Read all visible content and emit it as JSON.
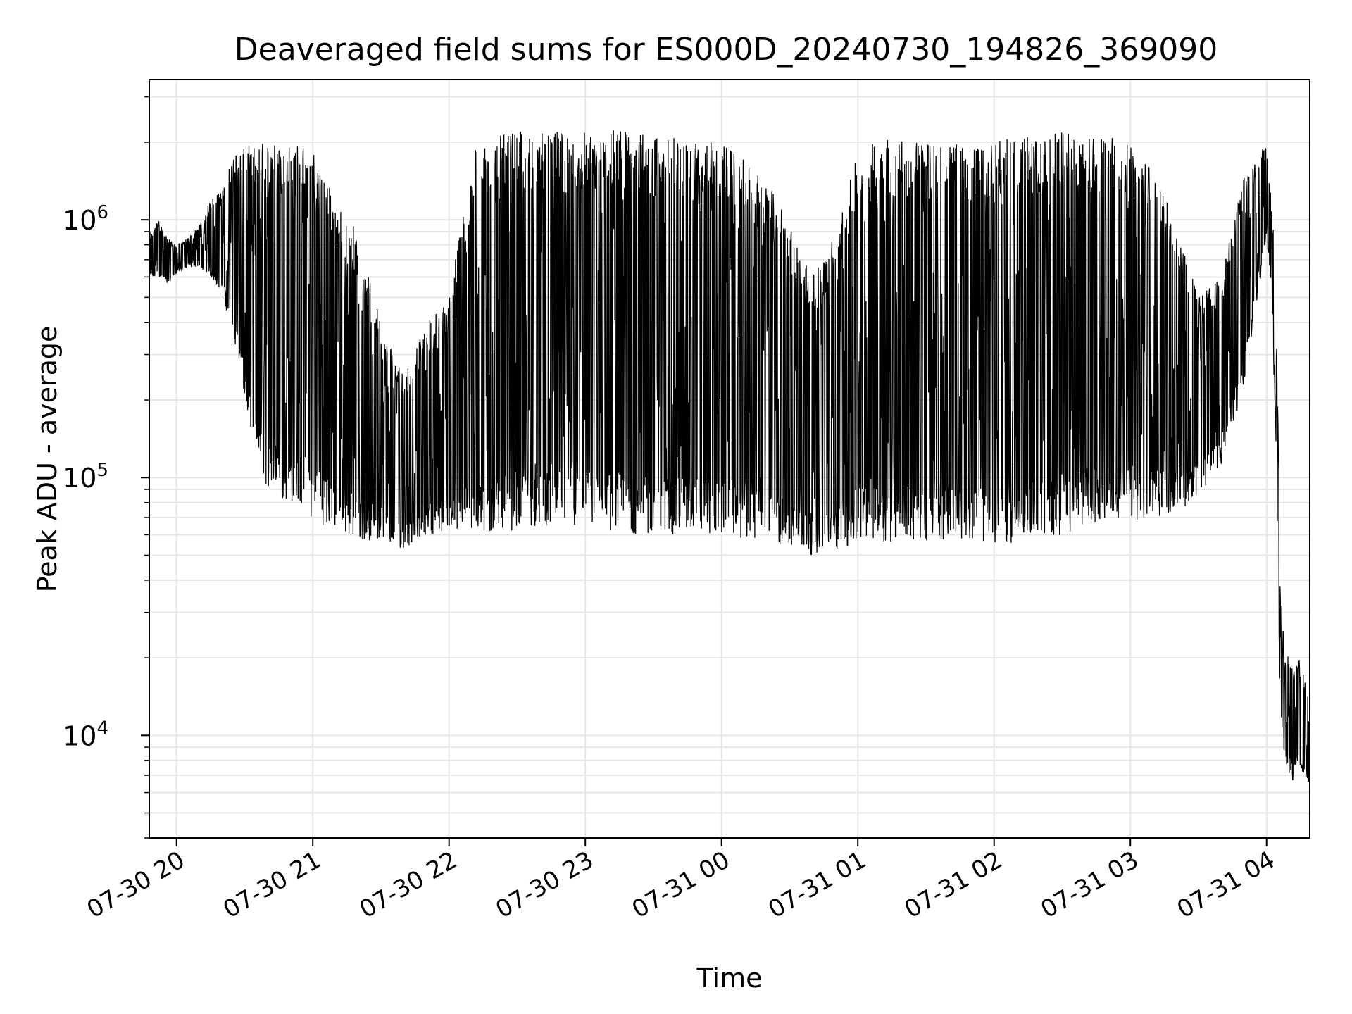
{
  "chart_data": {
    "type": "line",
    "title": "Deaveraged field sums for ES000D_20240730_194826_369090",
    "xlabel": "Time",
    "ylabel": "Peak ADU - average",
    "x_axis": {
      "kind": "datetime",
      "range": [
        "2024-07-30T19:48:00",
        "2024-07-31T04:19:00"
      ],
      "ticks": [
        {
          "value": "2024-07-30T20:00:00",
          "label": "07-30 20"
        },
        {
          "value": "2024-07-30T21:00:00",
          "label": "07-30 21"
        },
        {
          "value": "2024-07-30T22:00:00",
          "label": "07-30 22"
        },
        {
          "value": "2024-07-30T23:00:00",
          "label": "07-30 23"
        },
        {
          "value": "2024-07-31T00:00:00",
          "label": "07-31 00"
        },
        {
          "value": "2024-07-31T01:00:00",
          "label": "07-31 01"
        },
        {
          "value": "2024-07-31T02:00:00",
          "label": "07-31 02"
        },
        {
          "value": "2024-07-31T03:00:00",
          "label": "07-31 03"
        },
        {
          "value": "2024-07-31T04:00:00",
          "label": "07-31 04"
        }
      ]
    },
    "y_axis": {
      "scale": "log",
      "range": [
        4000,
        3500000
      ],
      "ticks": [
        {
          "value": 10000,
          "base": "10",
          "exp": "4"
        },
        {
          "value": 100000,
          "base": "10",
          "exp": "5"
        },
        {
          "value": 1000000,
          "base": "10",
          "exp": "6"
        }
      ]
    },
    "grid": true,
    "legend": "none",
    "line_color": "#000000",
    "series": [
      {
        "x": [
          "2024-07-30T19:48:00",
          "2024-07-30T19:52:00",
          "2024-07-30T19:56:00",
          "2024-07-30T20:00:00",
          "2024-07-30T20:05:00",
          "2024-07-30T20:10:00",
          "2024-07-30T20:15:00",
          "2024-07-30T20:20:00",
          "2024-07-30T20:25:00",
          "2024-07-30T20:30:00",
          "2024-07-30T20:35:00",
          "2024-07-30T20:40:00",
          "2024-07-30T20:45:00",
          "2024-07-30T20:50:00",
          "2024-07-30T20:55:00",
          "2024-07-30T21:00:00",
          "2024-07-30T21:10:00",
          "2024-07-30T21:20:00",
          "2024-07-30T21:30:00",
          "2024-07-30T21:40:00",
          "2024-07-30T21:50:00",
          "2024-07-30T22:00:00",
          "2024-07-30T22:10:00",
          "2024-07-30T22:15:00",
          "2024-07-30T22:20:00",
          "2024-07-30T22:30:00",
          "2024-07-30T22:40:00",
          "2024-07-30T22:50:00",
          "2024-07-30T23:00:00",
          "2024-07-30T23:10:00",
          "2024-07-30T23:20:00",
          "2024-07-30T23:30:00",
          "2024-07-30T23:40:00",
          "2024-07-30T23:50:00",
          "2024-07-31T00:00:00",
          "2024-07-31T00:10:00",
          "2024-07-31T00:20:00",
          "2024-07-31T00:30:00",
          "2024-07-31T00:40:00",
          "2024-07-31T00:50:00",
          "2024-07-31T01:00:00",
          "2024-07-31T01:10:00",
          "2024-07-31T01:20:00",
          "2024-07-31T01:30:00",
          "2024-07-31T01:40:00",
          "2024-07-31T01:50:00",
          "2024-07-31T02:00:00",
          "2024-07-31T02:10:00",
          "2024-07-31T02:20:00",
          "2024-07-31T02:30:00",
          "2024-07-31T02:40:00",
          "2024-07-31T02:50:00",
          "2024-07-31T03:00:00",
          "2024-07-31T03:10:00",
          "2024-07-31T03:20:00",
          "2024-07-31T03:30:00",
          "2024-07-31T03:40:00",
          "2024-07-31T03:50:00",
          "2024-07-31T04:00:00",
          "2024-07-31T04:02:00",
          "2024-07-31T04:04:00",
          "2024-07-31T04:05:00",
          "2024-07-31T04:06:00",
          "2024-07-31T04:08:00",
          "2024-07-31T04:10:00",
          "2024-07-31T04:12:00",
          "2024-07-31T04:14:00",
          "2024-07-31T04:16:00",
          "2024-07-31T04:18:00",
          "2024-07-31T04:19:00"
        ],
        "low": [
          580000,
          600000,
          560000,
          620000,
          650000,
          660000,
          600000,
          520000,
          350000,
          200000,
          120000,
          90000,
          85000,
          80000,
          78000,
          68000,
          62000,
          58000,
          55000,
          53000,
          60000,
          62000,
          60000,
          58000,
          60000,
          63000,
          65000,
          62000,
          63000,
          62000,
          60000,
          58000,
          60000,
          59000,
          60000,
          58000,
          56000,
          52000,
          50000,
          52000,
          55000,
          56000,
          57000,
          56000,
          58000,
          57000,
          55000,
          56000,
          58000,
          60000,
          65000,
          66000,
          68000,
          70000,
          72000,
          85000,
          110000,
          220000,
          850000,
          550000,
          150000,
          40000,
          12000,
          8000,
          7000,
          6500,
          7500,
          7000,
          6500,
          6500
        ],
        "high": [
          900000,
          1000000,
          850000,
          800000,
          850000,
          950000,
          1200000,
          1300000,
          1800000,
          1900000,
          2000000,
          2000000,
          2000000,
          2000000,
          2000000,
          1900000,
          1200000,
          900000,
          400000,
          250000,
          400000,
          500000,
          1800000,
          2000000,
          2100000,
          2200000,
          2200000,
          2200000,
          2200000,
          2300000,
          2200000,
          2100000,
          2100000,
          2000000,
          2000000,
          1700000,
          1400000,
          1000000,
          600000,
          900000,
          1800000,
          2100000,
          2100000,
          2000000,
          2000000,
          1900000,
          2000000,
          2100000,
          2100000,
          2200000,
          2100000,
          2100000,
          2000000,
          1600000,
          1000000,
          500000,
          600000,
          1500000,
          2000000,
          1200000,
          700000,
          200000,
          40000,
          22000,
          20000,
          18000,
          20000,
          18000,
          16000,
          9000
        ]
      }
    ]
  }
}
